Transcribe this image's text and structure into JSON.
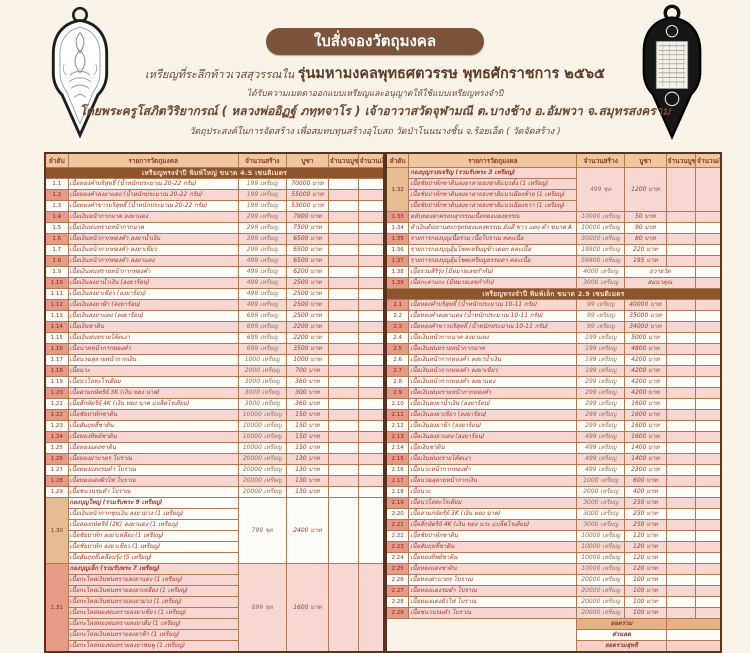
{
  "page": {
    "title": "ใบสั่งจองวัตถุมงคล",
    "line1a": "เหรียญที่ระลึกท้าวเวสสุวรรณใน",
    "line1b": "รุ่นมหามงคลพุทธศตวรรษ พุทธศักราชการ ๒๕๖๕",
    "line2": "ได้รับความเมตตาออกแบบเหรียญและอนุญาตให้ใช้แบบเหรียญทรงจำปี",
    "line3": "โดยพระครูโสภิตวิริยากรณ์ ( หลวงพ่ออิฏฐ์ ภทฺทจาโร ) เจ้าอาวาสวัดจุฬามณี ต.บางช้าง อ.อัมพวา จ.สมุทรสงคราม",
    "line4": "วัตถุประสงค์ในการจัดสร้าง เพื่อสมทบทุนสร้างอุโบสถ วัดป่าโนนนางชั้น จ.ร้อยเอ็ด ( วัดจัดสร้าง )"
  },
  "colors": {
    "page_bg": "#f9f4e7",
    "title_pill": "#7b523a",
    "header_row": "#f0c69e",
    "section_row": "#8d552c",
    "pink_row": "#f8d6d1",
    "salmon_no": "#e79a88",
    "tan_no": "#e6bd92",
    "text_red": "#a63a2a",
    "border_dark": "#5a3220"
  },
  "columns": [
    "ลำดับ",
    "รายการวัตถุมงคล",
    "จำนวนสร้าง",
    "บูชา",
    "จำนวนบูชา",
    "จำนวนเงิน"
  ],
  "left_table": {
    "entries": [
      {
        "type": "section",
        "label": "เหรียญทรงจำปี พิมพ์ใหญ่ ขนาด 4.5 เซนติเมตร"
      },
      {
        "type": "item",
        "shade": "w",
        "no": "1.1",
        "name": "เนื้อทองคำบริสุทธิ์ (น้ำหนักประมาณ 20-22 กรัม)",
        "qty": "199 เหรียญ",
        "price": "70000 บาท"
      },
      {
        "type": "item",
        "shade": "p",
        "no": "1.2",
        "name": "เนื้อทองคำลงยาแดง (น้ำหนักประมาณ 20-22 กรัม)",
        "qty": "199 เหรียญ",
        "price": "55000 บาท"
      },
      {
        "type": "item",
        "shade": "w",
        "no": "1.3",
        "name": "เนื้อทองคำขาวบริสุทธิ์ (น้ำหนักประมาณ 20-22 กรัม)",
        "qty": "199 เหรียญ",
        "price": "53000 บาท"
      },
      {
        "type": "item",
        "shade": "p",
        "no": "1.4",
        "name": "เนื้อเงินหน้ากากนาค ลงยาแดง",
        "qty": "299 เหรียญ",
        "price": "7900 บาท"
      },
      {
        "type": "item",
        "shade": "w",
        "no": "1.5",
        "name": "เนื้อเงินพ่นทรายหน้ากากนาค",
        "qty": "299 เหรียญ",
        "price": "7500 บาท"
      },
      {
        "type": "item",
        "shade": "p",
        "no": "1.6",
        "name": "เนื้อเงินหน้ากากทองคำ ลงยาน้ำเงิน",
        "qty": "299 เหรียญ",
        "price": "6500 บาท"
      },
      {
        "type": "item",
        "shade": "w",
        "no": "1.7",
        "name": "เนื้อเงินหน้ากากทองคำ ลงยาเขียว",
        "qty": "299 เหรียญ",
        "price": "6500 บาท"
      },
      {
        "type": "item",
        "shade": "p",
        "no": "1.8",
        "name": "เนื้อเงินหน้ากากทองคำ ลงยาแดง",
        "qty": "499 เหรียญ",
        "price": "6500 บาท"
      },
      {
        "type": "item",
        "shade": "w",
        "no": "1.9",
        "name": "เนื้อเงินพ่นทรายหน้ากากทองคำ",
        "qty": "499 เหรียญ",
        "price": "6200 บาท"
      },
      {
        "type": "item",
        "shade": "p",
        "no": "1.10",
        "name": "เนื้อเงินลงยาน้ำเงิน (ลงยาร้อน)",
        "qty": "499 เหรียญ",
        "price": "2500 บาท"
      },
      {
        "type": "item",
        "shade": "w",
        "no": "1.11",
        "name": "เนื้อเงินลงยาเขียว (ลงยาร้อน)",
        "qty": "499 เหรียญ",
        "price": "2500 บาท"
      },
      {
        "type": "item",
        "shade": "p",
        "no": "1.12",
        "name": "เนื้อเงินลงยาฟ้า (ลงยาร้อน)",
        "qty": "499 เหรียญ",
        "price": "2500 บาท"
      },
      {
        "type": "item",
        "shade": "w",
        "no": "1.13",
        "name": "เนื้อเงินลงยาแดง (ลงยาร้อน)",
        "qty": "699 เหรียญ",
        "price": "2500 บาท"
      },
      {
        "type": "item",
        "shade": "p",
        "no": "1.14",
        "name": "เนื้อเงินซาติน",
        "qty": "699 เหรียญ",
        "price": "2200 บาท"
      },
      {
        "type": "item",
        "shade": "w",
        "no": "1.15",
        "name": "เนื้อเงินพ่นทรายโค้ดเงา",
        "qty": "699 เหรียญ",
        "price": "2200 บาท"
      },
      {
        "type": "item",
        "shade": "p",
        "no": "1.16",
        "name": "เนื้อนาคหน้ากากทองคำ",
        "qty": "699 เหรียญ",
        "price": "3500 บาท"
      },
      {
        "type": "item",
        "shade": "w",
        "no": "1.17",
        "name": "เนื้อนวฉลุลายหน้ากากเงิน",
        "qty": "1000 เหรียญ",
        "price": "1000 บาท"
      },
      {
        "type": "item",
        "shade": "p",
        "no": "1.18",
        "name": "เนื้อนวะ",
        "qty": "2000 เหรียญ",
        "price": "700 บาท"
      },
      {
        "type": "item",
        "shade": "w",
        "no": "1.19",
        "name": "เนื้อนวโลหะโรเดียม",
        "qty": "3000 เหรียญ",
        "price": "360 บาท"
      },
      {
        "type": "item",
        "shade": "p",
        "no": "1.20",
        "name": "เนื้อสามกษัตริย์ 3K (เงิน ทอง นาค)",
        "qty": "3000 เหรียญ",
        "price": "300 บาท"
      },
      {
        "type": "item",
        "shade": "w",
        "no": "1.21",
        "name": "เนื้อสี่กษัตริย์ 4K (เงิน ทอง นาค แบล็คโรเดียม)",
        "qty": "3000 เหรียญ",
        "price": "360 บาท"
      },
      {
        "type": "item",
        "shade": "p",
        "no": "1.22",
        "name": "เนื้อชัยปาท์กซาติน",
        "qty": "10000 เหรียญ",
        "price": "150 บาท"
      },
      {
        "type": "item",
        "shade": "w",
        "no": "1.23",
        "name": "เนื้อสัมฤทธิ์ซาติน",
        "qty": "10000 เหรียญ",
        "price": "150 บาท"
      },
      {
        "type": "item",
        "shade": "p",
        "no": "1.24",
        "name": "เนื้อทองทิพย์ซาติน",
        "qty": "10000 เหรียญ",
        "price": "150 บาท"
      },
      {
        "type": "item",
        "shade": "w",
        "no": "1.25",
        "name": "เนื้อทองแดงซาติน",
        "qty": "10000 เหรียญ",
        "price": "150 บาท"
      },
      {
        "type": "item",
        "shade": "p",
        "no": "1.26",
        "name": "เนื้อทองฝาบาตร โบราณ",
        "qty": "20000 เหรียญ",
        "price": "130 บาท"
      },
      {
        "type": "item",
        "shade": "w",
        "no": "1.27",
        "name": "เนื้อทองแดงรมดำ โบราณ",
        "qty": "20000 เหรียญ",
        "price": "130 บาท"
      },
      {
        "type": "item",
        "shade": "p",
        "no": "1.28",
        "name": "เนื้อทองแดงผิวไฟ โบราณ",
        "qty": "20000 เหรียญ",
        "price": "130 บาท"
      },
      {
        "type": "item",
        "shade": "w",
        "no": "1.29",
        "name": "เนื้อชนวนรมดำ โบราณ",
        "qty": "20000 เหรียญ",
        "price": "130 บาท"
      },
      {
        "type": "group",
        "shade": "w",
        "noClass": "tan",
        "no": "1.30",
        "title": "กองบุญใหญ่ (รวมรับพระ 9 เหรียญ)",
        "qty": "799 ชุด",
        "price": "2400 บาท",
        "items": [
          "เนื้อเงินหน้ากากชุบเงิน ลงยาม่วง (1 เหรียญ)",
          "เนื้อสองกษัตริย์ (2K) ลงยาแดง (1 เหรียญ)",
          "เนื้อชัยปาท์ก ลงยาเหลือง (1 เหรียญ)",
          "เนื้อชัยปาท์ก ลงยาเขียว (1 เหรียญ)",
          "เนื้อสัมฤทธิ์เคลือบรุ้ง (5 เหรียญ)"
        ]
      },
      {
        "type": "group",
        "shade": "p",
        "noClass": "",
        "no": "1.31",
        "title": "กองบุญเล็ก (รวมรับพระ 7 เหรียญ)",
        "qty": "899 ชุด",
        "price": "1600 บาท",
        "items": [
          "เนื้อกะไหล่เงินพ่นทรายลงยาแดง (1 เหรียญ)",
          "เนื้อกะไหล่เงินพ่นทรายลงยาเหลือง (1 เหรียญ)",
          "เนื้อกะไหล่เงินพ่นทรายลงยาม่วง (1 เหรียญ)",
          "เนื้อกะไหล่ทองพ่นทรายลงยาเขียว (1 เหรียญ)",
          "เนื้อกะไหล่ทองพ่นทรายลงยาส้ม (1 เหรียญ)",
          "เนื้อกะไหล่เงินพ่นทรายลงยาฟ้า (1 เหรียญ)",
          "เนื้อกะไหล่ทองพ่นทรายลงยาชมพู (1 เหรียญ)"
        ]
      }
    ]
  },
  "right_table": {
    "entries": [
      {
        "type": "group",
        "shade": "p",
        "noClass": "tan",
        "no": "1.32",
        "title": "กองบุญรวยเจริญ (รวมรับพระ 3 เหรียญ)",
        "qty": "499 ชุด",
        "price": "1200 บาท",
        "items": [
          "เนื้อชัยปาท์กซาตินลงยาลายธงชาติแนวตั้ง (1 เหรียญ)",
          "เนื้อชัยปาท์กซาตินลงยาลายธงชาติแนวเฉียงซ้าย (1 เหรียญ)",
          "เนื้อชัยปาท์กซาตินลงยาลายธงชาติแนวเฉียงขวา (1 เหรียญ)"
        ]
      },
      {
        "type": "item",
        "shade": "p",
        "no": "1.33",
        "name": "ตลับทองฝาครอบสุวรรณเนื้อทองแดงพรรณ",
        "qty": "10000 เหรียญ",
        "price": "50 บาท"
      },
      {
        "type": "item",
        "shade": "w",
        "no": "1.34",
        "name": "ลำเงินต้นทานตะกรุดทองแดงพรรณ อันสี ขาว แดง ดำ ขนาด A",
        "qty": "10000 เหรียญ",
        "price": "90 บาท"
      },
      {
        "type": "item",
        "shade": "p",
        "no": "1.35",
        "name": "รายการกองบุญเนื้อร่วม เนื้อโบราณ คละเนื้อ",
        "qty": "30000 เหรียญ",
        "price": "80 บาท"
      },
      {
        "type": "item",
        "shade": "w",
        "no": "1.36",
        "name": "รายการกองบุญอุ้มโชคเหรียญข้าวตอก คละเนื้อ",
        "qty": "19900 เหรียญ",
        "price": "220 บาท"
      },
      {
        "type": "item",
        "shade": "p",
        "no": "1.37",
        "name": "รายการกองบุญอุ้มโชคเหรียญธรรมดา คละเนื้อ",
        "qty": "59900 เหรียญ",
        "price": "195 บาท"
      },
      {
        "type": "item",
        "shade": "w",
        "no": "1.38",
        "name": "เนื้อรวมสิริรุ่ง (มีหมายเลขกำกับ)",
        "qty": "4000 เหรียญ",
        "price": "ถวายวัด",
        "span": 2
      },
      {
        "type": "item",
        "shade": "p",
        "no": "1.39",
        "name": "เนื้อกะลาแกะ (มีหมายเลขกำกับ)",
        "qty": "3000 เหรียญ",
        "price": "สมนาคุณ",
        "span": 2
      },
      {
        "type": "section",
        "label": "เหรียญทรงจำปี พิมพ์เล็ก ขนาด 2.9 เซนติเมตร"
      },
      {
        "type": "item",
        "shade": "p",
        "no": "2.1",
        "name": "เนื้อทองคำบริสุทธิ์ (น้ำหนักประมาณ 10-11 กรัม)",
        "qty": "99 เหรียญ",
        "price": "40000 บาท"
      },
      {
        "type": "item",
        "shade": "w",
        "no": "2.2",
        "name": "เนื้อทองคำลงยาแดง (น้ำหนักประมาณ 10-11 กรัม)",
        "qty": "99 เหรียญ",
        "price": "35000 บาท"
      },
      {
        "type": "item",
        "shade": "p",
        "no": "2.3",
        "name": "เนื้อทองคำขาวบริสุทธิ์ (น้ำหนักประมาณ 10-11 กรัม)",
        "qty": "99 เหรียญ",
        "price": "34000 บาท"
      },
      {
        "type": "item",
        "shade": "w",
        "no": "2.4",
        "name": "เนื้อเงินหน้ากากนาค ลงยาแดง",
        "qty": "199 เหรียญ",
        "price": "5000 บาท"
      },
      {
        "type": "item",
        "shade": "p",
        "no": "2.5",
        "name": "เนื้อเงินพ่นทรายหน้ากากนาค",
        "qty": "199 เหรียญ",
        "price": "4800 บาท"
      },
      {
        "type": "item",
        "shade": "w",
        "no": "2.6",
        "name": "เนื้อเงินหน้ากากทองคำ ลงยาน้ำเงิน",
        "qty": "199 เหรียญ",
        "price": "4200 บาท"
      },
      {
        "type": "item",
        "shade": "p",
        "no": "2.7",
        "name": "เนื้อเงินหน้ากากทองคำ ลงยาเขียว",
        "qty": "199 เหรียญ",
        "price": "4200 บาท"
      },
      {
        "type": "item",
        "shade": "w",
        "no": "2.8",
        "name": "เนื้อเงินหน้ากากทองคำ ลงยาแดง",
        "qty": "299 เหรียญ",
        "price": "4200 บาท"
      },
      {
        "type": "item",
        "shade": "p",
        "no": "2.9",
        "name": "เนื้อเงินพ่นทรายหน้ากากทองคำ",
        "qty": "299 เหรียญ",
        "price": "4200 บาท"
      },
      {
        "type": "item",
        "shade": "w",
        "no": "2.10",
        "name": "เนื้อเงินลงยาน้ำเงิน (ลงยาร้อน)",
        "qty": "299 เหรียญ",
        "price": "1600 บาท"
      },
      {
        "type": "item",
        "shade": "p",
        "no": "2.11",
        "name": "เนื้อเงินลงยาเขียว (ลงยาร้อน)",
        "qty": "299 เหรียญ",
        "price": "1600 บาท"
      },
      {
        "type": "item",
        "shade": "w",
        "no": "2.12",
        "name": "เนื้อเงินลงยาฟ้า (ลงยาร้อน)",
        "qty": "299 เหรียญ",
        "price": "1600 บาท"
      },
      {
        "type": "item",
        "shade": "p",
        "no": "2.13",
        "name": "เนื้อเงินลงยาแดง (ลงยาร้อน)",
        "qty": "499 เหรียญ",
        "price": "1600 บาท"
      },
      {
        "type": "item",
        "shade": "w",
        "no": "2.14",
        "name": "เนื้อเงินซาติน",
        "qty": "499 เหรียญ",
        "price": "1400 บาท"
      },
      {
        "type": "item",
        "shade": "p",
        "no": "2.15",
        "name": "เนื้อเงินพ่นทรายโค้ดเงา",
        "qty": "499 เหรียญ",
        "price": "1400 บาท"
      },
      {
        "type": "item",
        "shade": "w",
        "no": "2.16",
        "name": "เนื้อนวะหน้ากากทองคำ",
        "qty": "499 เหรียญ",
        "price": "2300 บาท"
      },
      {
        "type": "item",
        "shade": "p",
        "no": "2.17",
        "name": "เนื้อนวฉลุลายหน้ากากเงิน",
        "qty": "1000 เหรียญ",
        "price": "600 บาท"
      },
      {
        "type": "item",
        "shade": "w",
        "no": "2.18",
        "name": "เนื้อนวะ",
        "qty": "2000 เหรียญ",
        "price": "400 บาท"
      },
      {
        "type": "item",
        "shade": "p",
        "no": "2.19",
        "name": "เนื้อนวโลหะโรเดียม",
        "qty": "3000 เหรียญ",
        "price": "250 บาท"
      },
      {
        "type": "item",
        "shade": "w",
        "no": "2.20",
        "name": "เนื้อสามกษัตริย์ 3K (เงิน ทอง นาค)",
        "qty": "3000 เหรียญ",
        "price": "250 บาท"
      },
      {
        "type": "item",
        "shade": "p",
        "no": "2.21",
        "name": "เนื้อสี่กษัตริย์ 4K (เงิน ทอง นวะ แบล็คโรเดียม)",
        "qty": "3000 เหรียญ",
        "price": "250 บาท"
      },
      {
        "type": "item",
        "shade": "w",
        "no": "2.22",
        "name": "เนื้อชัยปาท์กซาติน",
        "qty": "10000 เหรียญ",
        "price": "120 บาท"
      },
      {
        "type": "item",
        "shade": "p",
        "no": "2.23",
        "name": "เนื้อสัมฤทธิ์ซาติน",
        "qty": "10000 เหรียญ",
        "price": "120 บาท"
      },
      {
        "type": "item",
        "shade": "w",
        "no": "2.24",
        "name": "เนื้อทองทิพย์ซาติน",
        "qty": "10000 เหรียญ",
        "price": "120 บาท"
      },
      {
        "type": "item",
        "shade": "p",
        "no": "2.25",
        "name": "เนื้อทองแดงซาติน",
        "qty": "10000 เหรียญ",
        "price": "120 บาท"
      },
      {
        "type": "item",
        "shade": "w",
        "no": "2.26",
        "name": "เนื้อทองฝาบาตร โบราณ",
        "qty": "20000 เหรียญ",
        "price": "100 บาท"
      },
      {
        "type": "item",
        "shade": "p",
        "no": "2.27",
        "name": "เนื้อทองแดงรมดำ โบราณ",
        "qty": "20000 เหรียญ",
        "price": "100 บาท"
      },
      {
        "type": "item",
        "shade": "w",
        "no": "2.28",
        "name": "เนื้อทองแดงผิวไฟ โบราณ",
        "qty": "20000 เหรียญ",
        "price": "100 บาท"
      },
      {
        "type": "item",
        "shade": "p",
        "no": "2.29",
        "name": "เนื้อชนวนรมดำ โบราณ",
        "qty": "20000 เหรียญ",
        "price": "100 บาท"
      },
      {
        "type": "total",
        "label": "ยอดรวม",
        "bg": "#e8b183"
      },
      {
        "type": "total",
        "label": "ส่วนลด",
        "bg": "#fefcf7"
      },
      {
        "type": "total",
        "label": "ยอดรวมสุทธิ",
        "bg": "#f7d0ca"
      }
    ]
  }
}
